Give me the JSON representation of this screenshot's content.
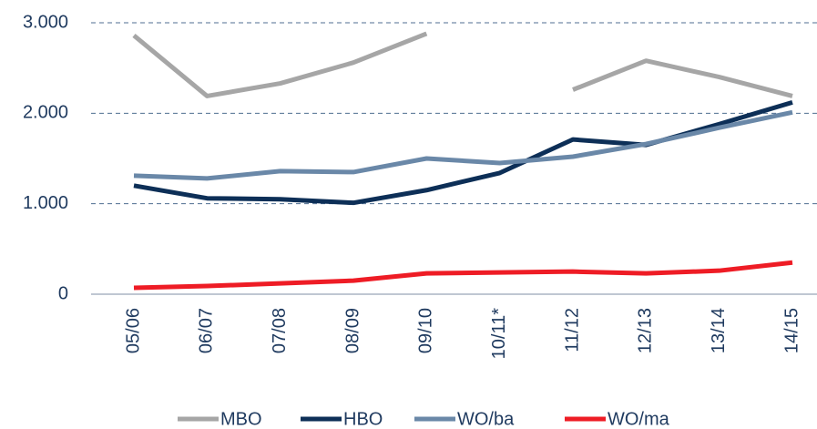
{
  "chart_data": {
    "type": "line",
    "categories": [
      "05/06",
      "06/07",
      "07/08",
      "08/09",
      "09/10",
      "10/11*",
      "11/12",
      "12/13",
      "13/14",
      "14/15"
    ],
    "series": [
      {
        "name": "MBO",
        "color": "#a6a6a6",
        "values": [
          2860,
          2190,
          2330,
          2560,
          2880,
          null,
          2260,
          2580,
          2400,
          2190
        ]
      },
      {
        "name": "HBO",
        "color": "#0d2f57",
        "values": [
          1200,
          1060,
          1050,
          1010,
          1150,
          1340,
          1710,
          1650,
          1880,
          2120
        ]
      },
      {
        "name": "WO/ba",
        "color": "#6a88a8",
        "values": [
          1310,
          1280,
          1360,
          1350,
          1500,
          1450,
          1520,
          1660,
          1840,
          2010
        ]
      },
      {
        "name": "WO/ma",
        "color": "#ee1c25",
        "values": [
          70,
          90,
          120,
          150,
          230,
          240,
          250,
          230,
          260,
          350
        ]
      }
    ],
    "ylim": [
      0,
      3000
    ],
    "yticks": [
      0,
      {
        "value": 1000,
        "label": "1.000"
      },
      {
        "value": 2000,
        "label": "2.000"
      },
      {
        "value": 3000,
        "label": "3.000"
      }
    ],
    "grid": true,
    "legend": "bottom"
  }
}
